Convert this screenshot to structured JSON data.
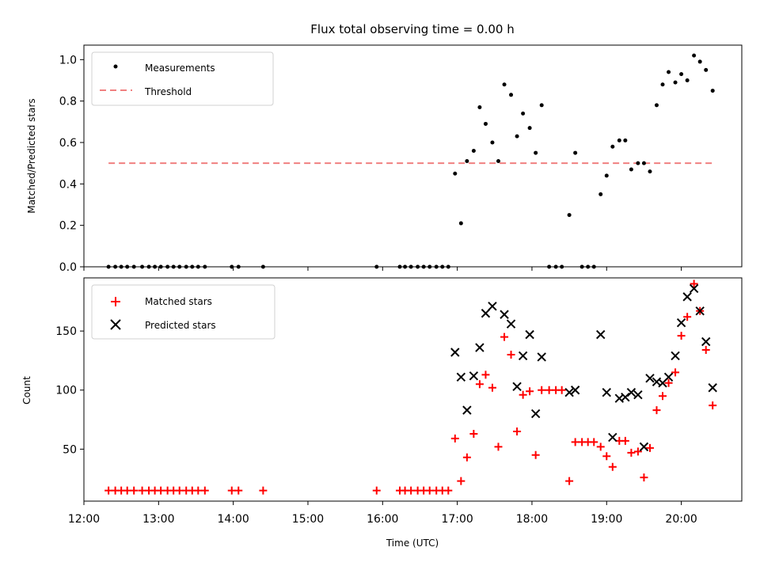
{
  "chart_data": [
    {
      "type": "scatter",
      "title": "Flux total observing time = 0.00 h",
      "xlabel": "",
      "ylabel": "Matched/Predicted stars",
      "xlim": [
        12.0,
        20.81
      ],
      "ylim": [
        0.0,
        1.07
      ],
      "xticks_labels_visible": false,
      "xticks": [
        12,
        13,
        14,
        15,
        16,
        17,
        18,
        19,
        20
      ],
      "yticks": [
        0.0,
        0.2,
        0.4,
        0.6,
        0.8,
        1.0
      ],
      "ytick_labels": [
        "0.0",
        "0.2",
        "0.4",
        "0.6",
        "0.8",
        "1.0"
      ],
      "legend": {
        "position": "top-left",
        "entries": [
          "Measurements",
          "Threshold"
        ]
      },
      "series": [
        {
          "name": "Measurements",
          "marker": "dot",
          "color": "#000000",
          "points": [
            [
              12.33,
              0
            ],
            [
              12.42,
              0
            ],
            [
              12.5,
              0
            ],
            [
              12.58,
              0
            ],
            [
              12.67,
              0
            ],
            [
              12.78,
              0
            ],
            [
              12.87,
              0
            ],
            [
              12.95,
              0
            ],
            [
              13.03,
              0
            ],
            [
              13.12,
              0
            ],
            [
              13.2,
              0
            ],
            [
              13.28,
              0
            ],
            [
              13.37,
              0
            ],
            [
              13.45,
              0
            ],
            [
              13.53,
              0
            ],
            [
              13.62,
              0
            ],
            [
              13.98,
              0
            ],
            [
              14.07,
              0
            ],
            [
              14.4,
              0
            ],
            [
              15.92,
              0
            ],
            [
              16.23,
              0
            ],
            [
              16.3,
              0
            ],
            [
              16.38,
              0
            ],
            [
              16.47,
              0
            ],
            [
              16.55,
              0
            ],
            [
              16.63,
              0
            ],
            [
              16.72,
              0
            ],
            [
              16.8,
              0
            ],
            [
              16.88,
              0
            ],
            [
              16.97,
              0.45
            ],
            [
              17.05,
              0.21
            ],
            [
              17.13,
              0.51
            ],
            [
              17.22,
              0.56
            ],
            [
              17.3,
              0.77
            ],
            [
              17.38,
              0.69
            ],
            [
              17.47,
              0.6
            ],
            [
              17.55,
              0.51
            ],
            [
              17.63,
              0.88
            ],
            [
              17.72,
              0.83
            ],
            [
              17.8,
              0.63
            ],
            [
              17.88,
              0.74
            ],
            [
              17.97,
              0.67
            ],
            [
              18.05,
              0.55
            ],
            [
              18.13,
              0.78
            ],
            [
              18.23,
              0
            ],
            [
              18.32,
              0
            ],
            [
              18.4,
              0
            ],
            [
              18.5,
              0.25
            ],
            [
              18.58,
              0.55
            ],
            [
              18.67,
              0
            ],
            [
              18.75,
              0
            ],
            [
              18.83,
              0
            ],
            [
              18.92,
              0.35
            ],
            [
              19.0,
              0.44
            ],
            [
              19.08,
              0.58
            ],
            [
              19.17,
              0.61
            ],
            [
              19.25,
              0.61
            ],
            [
              19.33,
              0.47
            ],
            [
              19.42,
              0.5
            ],
            [
              19.5,
              0.5
            ],
            [
              19.58,
              0.46
            ],
            [
              19.67,
              0.78
            ],
            [
              19.75,
              0.88
            ],
            [
              19.83,
              0.94
            ],
            [
              19.92,
              0.89
            ],
            [
              20.0,
              0.93
            ],
            [
              20.08,
              0.9
            ],
            [
              20.17,
              1.02
            ],
            [
              20.25,
              0.99
            ],
            [
              20.33,
              0.95
            ],
            [
              20.42,
              0.85
            ]
          ]
        },
        {
          "name": "Threshold",
          "style": "dashed",
          "color": "#f08080",
          "points": [
            [
              12.33,
              0.5
            ],
            [
              20.42,
              0.5
            ]
          ]
        }
      ]
    },
    {
      "type": "scatter",
      "title": "",
      "xlabel": "Time (UTC)",
      "ylabel": "Count",
      "xlim": [
        12.0,
        20.81
      ],
      "ylim": [
        6,
        195
      ],
      "xticks": [
        12,
        13,
        14,
        15,
        16,
        17,
        18,
        19,
        20
      ],
      "xtick_labels": [
        "12:00",
        "13:00",
        "14:00",
        "15:00",
        "16:00",
        "17:00",
        "18:00",
        "19:00",
        "20:00"
      ],
      "yticks": [
        50,
        100,
        150
      ],
      "ytick_labels": [
        "50",
        "100",
        "150"
      ],
      "legend": {
        "position": "top-left",
        "entries": [
          "Matched stars",
          "Predicted stars"
        ]
      },
      "series": [
        {
          "name": "Matched stars",
          "marker": "plus",
          "color": "#ff0000",
          "points": [
            [
              12.33,
              15
            ],
            [
              12.42,
              15
            ],
            [
              12.5,
              15
            ],
            [
              12.58,
              15
            ],
            [
              12.67,
              15
            ],
            [
              12.78,
              15
            ],
            [
              12.87,
              15
            ],
            [
              12.95,
              15
            ],
            [
              13.03,
              15
            ],
            [
              13.12,
              15
            ],
            [
              13.2,
              15
            ],
            [
              13.28,
              15
            ],
            [
              13.37,
              15
            ],
            [
              13.45,
              15
            ],
            [
              13.53,
              15
            ],
            [
              13.62,
              15
            ],
            [
              13.98,
              15
            ],
            [
              14.07,
              15
            ],
            [
              14.4,
              15
            ],
            [
              15.92,
              15
            ],
            [
              16.23,
              15
            ],
            [
              16.3,
              15
            ],
            [
              16.38,
              15
            ],
            [
              16.47,
              15
            ],
            [
              16.55,
              15
            ],
            [
              16.63,
              15
            ],
            [
              16.72,
              15
            ],
            [
              16.8,
              15
            ],
            [
              16.88,
              15
            ],
            [
              16.97,
              59
            ],
            [
              17.05,
              23
            ],
            [
              17.13,
              43
            ],
            [
              17.22,
              63
            ],
            [
              17.3,
              105
            ],
            [
              17.38,
              113
            ],
            [
              17.47,
              102
            ],
            [
              17.55,
              52
            ],
            [
              17.63,
              145
            ],
            [
              17.72,
              130
            ],
            [
              17.8,
              65
            ],
            [
              17.88,
              96
            ],
            [
              17.97,
              99
            ],
            [
              18.05,
              45
            ],
            [
              18.13,
              100
            ],
            [
              18.23,
              100
            ],
            [
              18.32,
              100
            ],
            [
              18.4,
              100
            ],
            [
              18.5,
              23
            ],
            [
              18.58,
              56
            ],
            [
              18.67,
              56
            ],
            [
              18.75,
              56
            ],
            [
              18.83,
              56
            ],
            [
              18.92,
              52
            ],
            [
              19.0,
              44
            ],
            [
              19.08,
              35
            ],
            [
              19.17,
              57
            ],
            [
              19.25,
              57
            ],
            [
              19.33,
              47
            ],
            [
              19.42,
              48
            ],
            [
              19.5,
              26
            ],
            [
              19.58,
              51
            ],
            [
              19.67,
              83
            ],
            [
              19.75,
              95
            ],
            [
              19.83,
              106
            ],
            [
              19.92,
              115
            ],
            [
              20.0,
              146
            ],
            [
              20.08,
              162
            ],
            [
              20.17,
              190
            ],
            [
              20.25,
              167
            ],
            [
              20.33,
              134
            ],
            [
              20.42,
              87
            ]
          ]
        },
        {
          "name": "Predicted stars",
          "marker": "x",
          "color": "#000000",
          "points": [
            [
              16.97,
              132
            ],
            [
              17.05,
              111
            ],
            [
              17.13,
              83
            ],
            [
              17.22,
              112
            ],
            [
              17.3,
              136
            ],
            [
              17.38,
              165
            ],
            [
              17.47,
              171
            ],
            [
              17.63,
              164
            ],
            [
              17.72,
              156
            ],
            [
              17.8,
              103
            ],
            [
              17.88,
              129
            ],
            [
              17.97,
              147
            ],
            [
              18.05,
              80
            ],
            [
              18.13,
              128
            ],
            [
              18.5,
              98
            ],
            [
              18.58,
              100
            ],
            [
              18.92,
              147
            ],
            [
              19.0,
              98
            ],
            [
              19.08,
              60
            ],
            [
              19.17,
              93
            ],
            [
              19.25,
              94
            ],
            [
              19.33,
              98
            ],
            [
              19.42,
              96
            ],
            [
              19.5,
              52
            ],
            [
              19.58,
              110
            ],
            [
              19.67,
              107
            ],
            [
              19.75,
              106
            ],
            [
              19.83,
              111
            ],
            [
              19.92,
              129
            ],
            [
              20.0,
              157
            ],
            [
              20.08,
              179
            ],
            [
              20.17,
              186
            ],
            [
              20.25,
              167
            ],
            [
              20.33,
              141
            ],
            [
              20.42,
              102
            ]
          ]
        }
      ]
    }
  ]
}
